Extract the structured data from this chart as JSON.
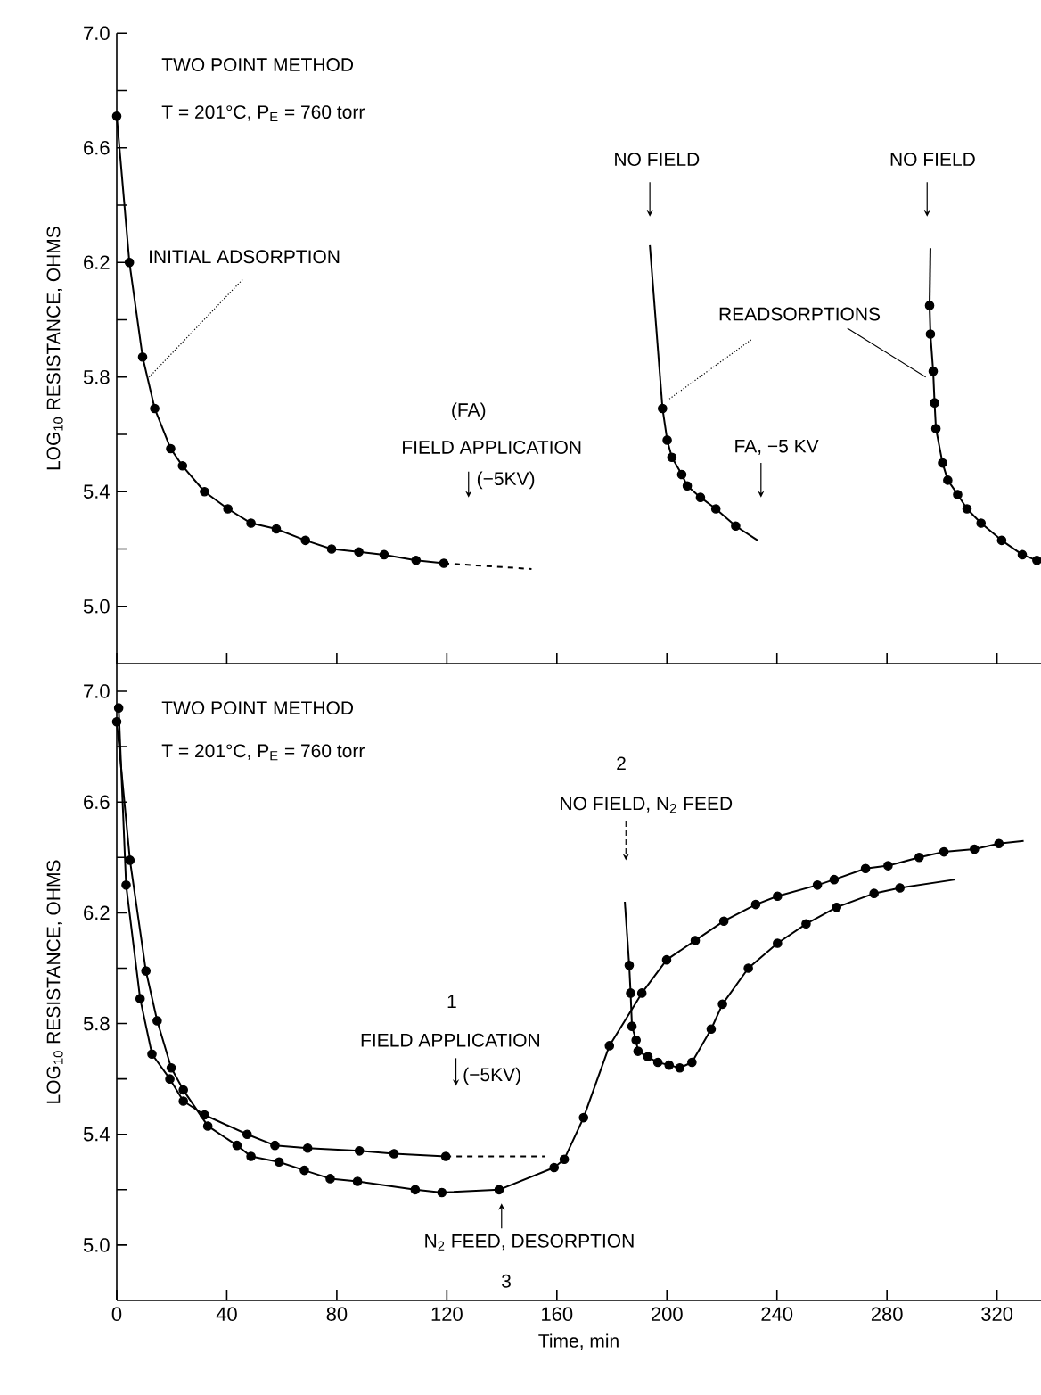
{
  "chart_data": [
    {
      "type": "line",
      "ylabel": "LOG$_{10}$ RESISTANCE, OHMS",
      "xlim": [
        0,
        336
      ],
      "ylim": [
        4.8,
        7.0
      ],
      "xticks": [
        0,
        40,
        80,
        120,
        160,
        200,
        240,
        280,
        320
      ],
      "yticks": [
        {
          "value": 5.0,
          "label": "5.0"
        },
        {
          "value": 5.2,
          "label": null
        },
        5.4,
        {
          "value": 5.6,
          "label": null
        },
        5.8,
        {
          "value": 6.0,
          "label": null
        },
        6.2,
        {
          "value": 6.4,
          "label": null
        },
        6.6,
        {
          "value": 6.8,
          "label": null
        },
        {
          "value": 7.0,
          "label": "7.0"
        }
      ],
      "tick_labels": "y",
      "annotations": [
        "TWO POINT METHOD",
        "T = 201°C,  P$_{E}$ = 760 torr",
        {
          "text": "INITIAL ADSORPTION",
          "x": 11.8,
          "y": 5.8
        },
        "(FA)",
        "FIELD APPLICATION",
        "(−5KV)",
        "NO FIELD",
        "NO FIELD",
        {
          "text": "READSORPTIONS",
          "x": 200.4,
          "y": 5.72
        },
        "FA, −5 KV"
      ],
      "series": [
        {
          "color": "#000000",
          "marker": "circle",
          "line_style": "solid",
          "x": [
            0,
            4.6,
            9.4,
            13.8,
            19.6,
            23.9,
            31.9,
            40.4,
            48.8,
            58.0,
            68.6,
            78.1,
            88.0,
            97.2,
            108.8,
            118.9
          ],
          "values": [
            6.71,
            6.2,
            5.87,
            5.69,
            5.55,
            5.49,
            5.4,
            5.34,
            5.29,
            5.27,
            5.23,
            5.2,
            5.19,
            5.18,
            5.16,
            5.15
          ]
        },
        {
          "color": "#000000",
          "marker": "none",
          "line_style": "dashed",
          "x": [
            118.9,
            150.8
          ],
          "values": [
            5.15,
            5.13
          ]
        },
        {
          "color": "#000000",
          "line_style": "solid",
          "x": [
            193.8,
            198.4
          ],
          "values": [
            6.26,
            5.69
          ]
        },
        {
          "color": "#000000",
          "marker": "circle",
          "line_style": "solid",
          "x": [
            198.4,
            200.1,
            201.8,
            205.4,
            207.4,
            212.2,
            217.8,
            225.0
          ],
          "values": [
            5.69,
            5.58,
            5.52,
            5.46,
            5.42,
            5.38,
            5.34,
            5.28
          ]
        },
        {
          "color": "#000000",
          "line_style": "solid",
          "x": [
            225.0,
            233.0
          ],
          "values": [
            5.28,
            5.23
          ]
        },
        {
          "color": "#000000",
          "line_style": "solid",
          "x": [
            295.8,
            295.5
          ],
          "values": [
            6.25,
            6.05
          ]
        },
        {
          "color": "#000000",
          "marker": "circle",
          "line_style": "solid",
          "x": [
            295.5,
            295.8,
            296.8,
            297.3,
            297.8,
            300.2,
            302.1,
            305.7,
            309.1,
            314.2,
            321.7,
            329.2,
            334.5
          ],
          "values": [
            6.05,
            5.95,
            5.82,
            5.71,
            5.62,
            5.5,
            5.44,
            5.39,
            5.34,
            5.29,
            5.23,
            5.18,
            5.16
          ]
        }
      ]
    },
    {
      "type": "line",
      "xlabel": "Time, min",
      "ylabel": "LOG$_{10}$ RESISTANCE, OHMS",
      "xlim": [
        0,
        336
      ],
      "ylim": [
        4.8,
        7.1
      ],
      "xticks": [
        0,
        40,
        80,
        120,
        160,
        200,
        240,
        280,
        320
      ],
      "yticks": [
        {
          "value": 5.0,
          "label": "5.0"
        },
        {
          "value": 5.2,
          "label": null
        },
        5.4,
        {
          "value": 5.6,
          "label": null
        },
        5.8,
        {
          "value": 6.0,
          "label": null
        },
        6.2,
        {
          "value": 6.4,
          "label": null
        },
        6.6,
        {
          "value": 6.8,
          "label": null
        },
        {
          "value": 7.0,
          "label": "7.0"
        }
      ],
      "annotations": [
        "TWO POINT METHOD",
        "T = 201°C,  P$_{E}$ = 760 torr",
        "2",
        "NO FIELD, N$_{2}$ FEED",
        "1",
        "FIELD APPLICATION",
        "(−5KV)",
        "N$_{2}$ FEED, DESORPTION",
        "3"
      ],
      "series": [
        {
          "color": "#000000",
          "marker": "circle",
          "line_style": "solid",
          "x": [
            0,
            4.8,
            10.6,
            14.7,
            19.8,
            24.2,
            33.1,
            43.7,
            48.8,
            59.0,
            68.2,
            77.6,
            87.5,
            108.5,
            118.2,
            139.0,
            159.0,
            162.7,
            169.7,
            179.1,
            190.9,
            199.9,
            210.3,
            220.7,
            232.3,
            240.2,
            254.7,
            260.8,
            272.2,
            280.4,
            291.7,
            300.7,
            311.8,
            320.7
          ],
          "values": [
            6.89,
            6.39,
            5.99,
            5.81,
            5.64,
            5.56,
            5.43,
            5.36,
            5.32,
            5.3,
            5.27,
            5.24,
            5.23,
            5.2,
            5.19,
            5.2,
            5.28,
            5.31,
            5.46,
            5.72,
            5.91,
            6.03,
            6.1,
            6.17,
            6.23,
            6.26,
            6.3,
            6.32,
            6.36,
            6.37,
            6.4,
            6.42,
            6.43,
            6.45
          ]
        },
        {
          "color": "#000000",
          "marker": "none",
          "line_style": "solid",
          "x": [
            320.7,
            329.7
          ],
          "values": [
            6.45,
            6.46
          ]
        },
        {
          "color": "#000000",
          "marker": "circle",
          "line_style": "solid",
          "x": [
            0.7,
            3.4,
            8.5,
            12.8,
            19.3,
            24.2,
            31.9,
            47.4,
            57.5,
            69.4,
            88.2,
            100.8,
            119.6
          ],
          "values": [
            6.94,
            6.3,
            5.89,
            5.69,
            5.6,
            5.52,
            5.47,
            5.4,
            5.36,
            5.35,
            5.34,
            5.33,
            5.32
          ]
        },
        {
          "color": "#000000",
          "marker": "none",
          "line_style": "dashed",
          "x": [
            119.6,
            155.6
          ],
          "values": [
            5.32,
            5.32
          ]
        },
        {
          "color": "#000000",
          "line_style": "solid",
          "x": [
            184.7,
            186.3
          ],
          "values": [
            6.24,
            6.01
          ]
        },
        {
          "color": "#000000",
          "marker": "circle",
          "line_style": "solid",
          "x": [
            186.3,
            186.8,
            187.3,
            188.8,
            189.5,
            193.1,
            196.7,
            200.8,
            204.7,
            209.1,
            216.1,
            220.2,
            229.6,
            240.2,
            250.6,
            261.7,
            275.3,
            284.7
          ],
          "values": [
            6.01,
            5.91,
            5.79,
            5.74,
            5.7,
            5.68,
            5.66,
            5.65,
            5.64,
            5.66,
            5.78,
            5.87,
            6.0,
            6.09,
            6.16,
            6.22,
            6.27,
            6.29
          ]
        },
        {
          "color": "#000000",
          "marker": "none",
          "line_style": "solid",
          "x": [
            284.7,
            304.8
          ],
          "values": [
            6.29,
            6.32
          ]
        }
      ]
    }
  ]
}
